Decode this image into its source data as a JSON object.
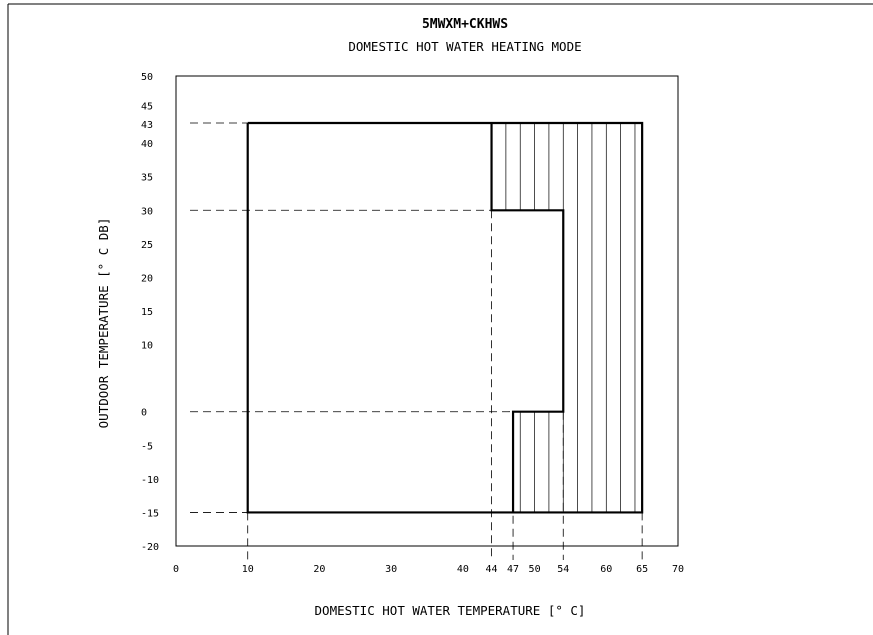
{
  "chart_data": {
    "type": "line",
    "title": "5MWXM+CKHWS",
    "subtitle": "DOMESTIC HOT WATER HEATING MODE",
    "xlabel": "DOMESTIC HOT WATER TEMPERATURE [° C]",
    "ylabel": "OUTDOOR TEMPERATURE [° C DB]",
    "xlim": [
      0,
      70
    ],
    "ylim": [
      -20,
      50
    ],
    "x_ticks": [
      0,
      10,
      20,
      30,
      40,
      44,
      47,
      50,
      54,
      60,
      65,
      70
    ],
    "y_ticks": [
      50,
      45,
      43,
      40,
      35,
      30,
      25,
      20,
      15,
      10,
      0,
      -5,
      -10,
      -15,
      -20
    ],
    "grid": false,
    "series": [
      {
        "region": "outer-operating-range",
        "x": [
          10,
          65,
          65,
          10,
          10
        ],
        "y": [
          43,
          43,
          -15,
          -15,
          43
        ]
      },
      {
        "region": "hatched-boundary",
        "x": [
          44,
          44,
          54,
          54,
          47,
          47
        ],
        "y": [
          43,
          30,
          30,
          0,
          0,
          -15
        ]
      }
    ],
    "hatched_region": {
      "x": [
        44,
        65,
        65,
        47,
        47,
        54,
        54,
        44
      ],
      "y": [
        43,
        43,
        -15,
        -15,
        0,
        0,
        30,
        30
      ],
      "hatch_spacing": 2
    },
    "dashed_guides": {
      "horizontal": [
        43,
        30,
        0,
        -15
      ],
      "vertical": [
        10,
        44,
        47,
        54,
        65
      ]
    }
  }
}
